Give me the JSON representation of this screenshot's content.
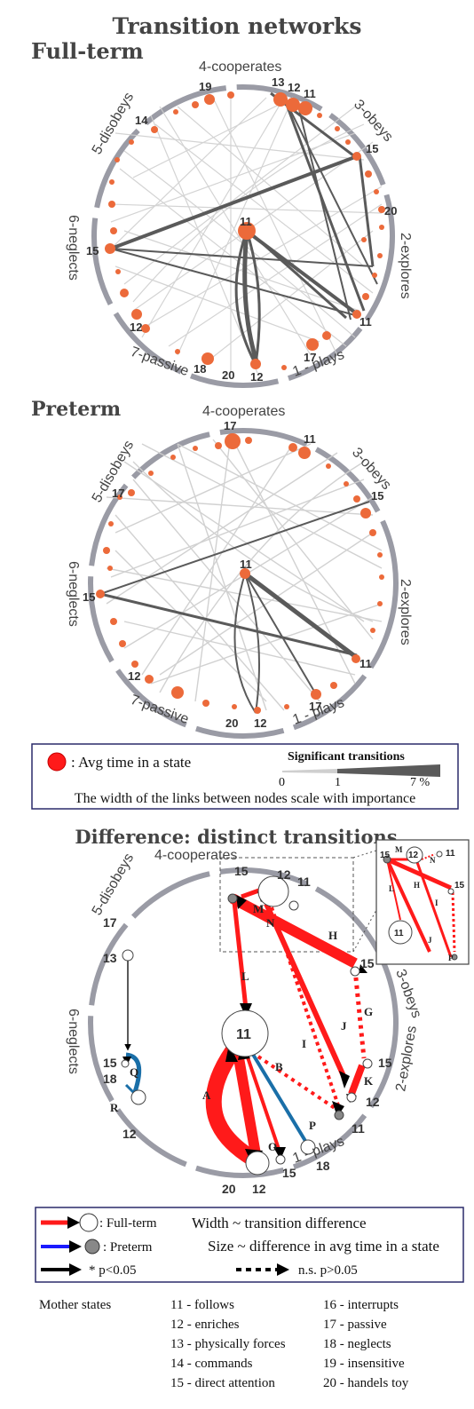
{
  "title": "Transition networks",
  "fullterm": {
    "label": "Full-term",
    "sectors": [
      "4-cooperates",
      "3-obeys",
      "2-explores",
      "1 - plays",
      "7-passive",
      "6-neglects",
      "5-disobeys"
    ],
    "nodes": [
      "13",
      "12",
      "11",
      "19",
      "14",
      "15",
      "20",
      "15",
      "11",
      "17",
      "12",
      "20",
      "18",
      "12",
      "15",
      "11"
    ]
  },
  "preterm": {
    "label": "Preterm",
    "sectors": [
      "4-cooperates",
      "3-obeys",
      "2-explores",
      "1 - plays",
      "7-passive",
      "6-neglects",
      "5-disobeys"
    ],
    "nodes": [
      "17",
      "11",
      "15",
      "11",
      "17",
      "12",
      "20",
      "12",
      "15",
      "17",
      "11"
    ]
  },
  "legend1": {
    "avg_time": ": Avg time in a state",
    "sig_title": "Significant transitions",
    "tick0": "0",
    "tick1": "1",
    "tick7": "7 %",
    "caption": "The width of the links between nodes scale with importance"
  },
  "difference": {
    "title": "Difference: distinct transitions",
    "sectors": [
      "4-cooperates",
      "3-obeys",
      "2-explores",
      "1 - plays",
      "6-neglects",
      "5-disobeys"
    ],
    "nodes": [
      "15",
      "12",
      "11",
      "15",
      "15",
      "12",
      "11",
      "18",
      "15",
      "12",
      "20",
      "12",
      "18",
      "15",
      "13",
      "17",
      "11"
    ],
    "edge_labels": [
      "M",
      "N",
      "H",
      "L",
      "G",
      "J",
      "I",
      "K",
      "B",
      "A",
      "O",
      "P",
      "Q",
      "R"
    ],
    "inset_nodes": [
      "15",
      "12",
      "11",
      "15",
      "11"
    ],
    "inset_labels": [
      "M",
      "N",
      "H",
      "L",
      "I",
      "J",
      "P"
    ]
  },
  "legend2": {
    "fullterm": ": Full-term",
    "preterm": ": Preterm",
    "sig": "* p<0.05",
    "ns": "n.s. p>0.05",
    "width_note": "Width ~ transition difference",
    "size_note": "Size  ~ difference in avg time in a state"
  },
  "mother_states": {
    "title": "Mother states",
    "col1": [
      "11 - follows",
      "12 - enriches",
      "13 - physically forces",
      "14 - commands",
      "15 - direct attention"
    ],
    "col2": [
      "16 - interrupts",
      "17 - passive",
      "18 - neglects",
      "19 - insensitive",
      "20 - handels toy"
    ]
  },
  "colors": {
    "node": "#ec6a3a",
    "ring": "#9a9ba5",
    "fullterm": "#ff1a1a",
    "preterm": "#1a6fa8",
    "sig_link": "#5a5a5a",
    "minor_link": "#cfcfcf"
  }
}
